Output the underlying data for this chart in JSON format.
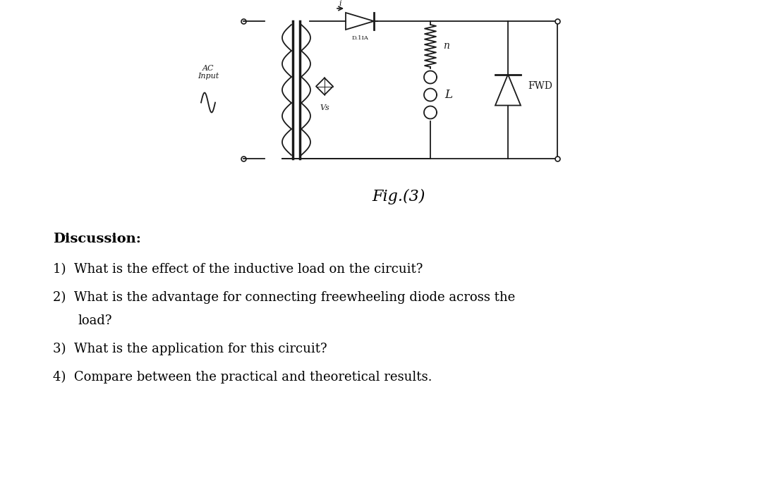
{
  "background_color": "#ffffff",
  "fig_caption": "Fig.(3)",
  "discussion_title": "Discussion:",
  "line1": "1)  What is the effect of the inductive load on the circuit?",
  "line2": "2)  What is the advantage for connecting freewheeling diode across the",
  "line2b": "       load?",
  "line3": "3)  What is the application for this circuit?",
  "line4": "4)  Compare between the practical and theoretical results.",
  "ac_input_label": "AC\nInput",
  "vs_label": "Vs",
  "n_label": "n",
  "L_label": "L",
  "FWD_label": "FWD",
  "circuit_color": "#1a1a1a",
  "circuit_lw": 1.3
}
